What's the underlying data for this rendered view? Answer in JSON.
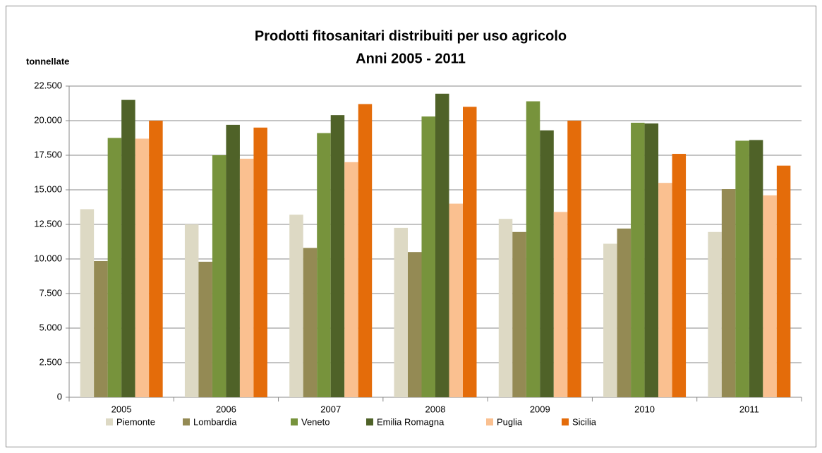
{
  "chart_data": {
    "type": "bar",
    "title": "Prodotti fitosanitari distribuiti per uso agricolo",
    "subtitle": "Anni 2005 - 2011",
    "y_label": "tonnellate",
    "categories": [
      "2005",
      "2006",
      "2007",
      "2008",
      "2009",
      "2010",
      "2011"
    ],
    "series": [
      {
        "name": "Piemonte",
        "color": "#ddd9c4",
        "values": [
          13600,
          12500,
          13200,
          12250,
          12900,
          11100,
          11950
        ]
      },
      {
        "name": "Lombardia",
        "color": "#948a54",
        "values": [
          9850,
          9800,
          10800,
          10500,
          11950,
          12200,
          15050
        ]
      },
      {
        "name": "Veneto",
        "color": "#77933c",
        "values": [
          18750,
          17500,
          19100,
          20300,
          21400,
          19850,
          18550
        ]
      },
      {
        "name": "Emilia Romagna",
        "color": "#4f6228",
        "values": [
          21500,
          19700,
          20400,
          21950,
          19300,
          19800,
          18600
        ]
      },
      {
        "name": "Puglia",
        "color": "#fac090",
        "values": [
          18700,
          17250,
          17000,
          14000,
          13400,
          15500,
          14600
        ]
      },
      {
        "name": "Sicilia",
        "color": "#e46c0a",
        "values": [
          20000,
          19500,
          21200,
          21000,
          20000,
          17600,
          16750
        ]
      }
    ],
    "ylim": [
      0,
      22500
    ],
    "yticks": [
      0,
      {
        "value": 2500,
        "label": "2.500"
      },
      {
        "value": 5000,
        "label": "5.000"
      },
      {
        "value": 7500,
        "label": "7.500"
      },
      {
        "value": 10000,
        "label": "10.000"
      },
      {
        "value": 12500,
        "label": "12.500"
      },
      {
        "value": 15000,
        "label": "15.000"
      },
      {
        "value": 17500,
        "label": "17.500"
      },
      {
        "value": 20000,
        "label": "20.000"
      },
      {
        "value": 22500,
        "label": "22.500"
      }
    ],
    "grid": true,
    "legend": "bottom"
  }
}
